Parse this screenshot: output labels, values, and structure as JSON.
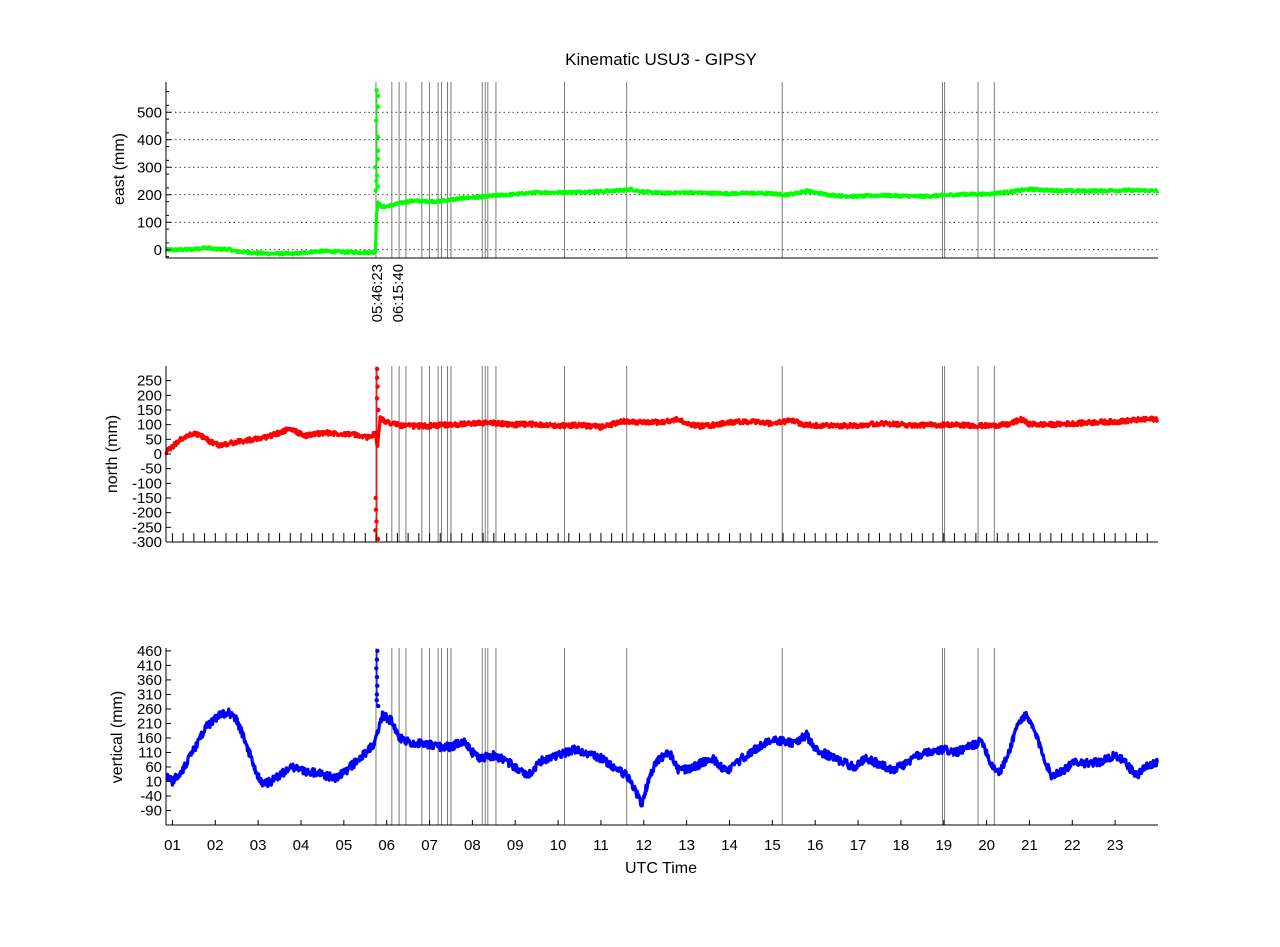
{
  "chart_data": {
    "type": "line",
    "title": "Kinematic USU3 - GIPSY",
    "xlabel": "UTC Time",
    "x_unit": "hour of day (UTC)",
    "xlim": [
      0.85,
      24.0
    ],
    "x_ticks": [
      {
        "v": 1,
        "label": "01"
      },
      {
        "v": 2,
        "label": "02"
      },
      {
        "v": 3,
        "label": "03"
      },
      {
        "v": 4,
        "label": "04"
      },
      {
        "v": 5,
        "label": "05"
      },
      {
        "v": 6,
        "label": "06"
      },
      {
        "v": 7,
        "label": "07"
      },
      {
        "v": 8,
        "label": "08"
      },
      {
        "v": 9,
        "label": "09"
      },
      {
        "v": 10,
        "label": "10"
      },
      {
        "v": 11,
        "label": "11"
      },
      {
        "v": 12,
        "label": "12"
      },
      {
        "v": 13,
        "label": "13"
      },
      {
        "v": 14,
        "label": "14"
      },
      {
        "v": 15,
        "label": "15"
      },
      {
        "v": 16,
        "label": "16"
      },
      {
        "v": 17,
        "label": "17"
      },
      {
        "v": 18,
        "label": "18"
      },
      {
        "v": 19,
        "label": "19"
      },
      {
        "v": 20,
        "label": "20"
      },
      {
        "v": 21,
        "label": "21"
      },
      {
        "v": 22,
        "label": "22"
      },
      {
        "v": 23,
        "label": "23"
      }
    ],
    "event_lines_hours": [
      5.75,
      6.12,
      6.29,
      6.45,
      6.82,
      7.0,
      7.2,
      7.28,
      7.42,
      7.5,
      8.23,
      8.3,
      8.36,
      8.55,
      10.15,
      11.6,
      15.23,
      18.97,
      19.02,
      19.8,
      20.18
    ],
    "event_labels": [
      {
        "hour": 5.773,
        "label": "05:46:23"
      },
      {
        "hour": 6.261,
        "label": "06:15:40"
      }
    ],
    "panels": [
      {
        "name": "east",
        "ylabel": "east (mm)",
        "color": "#00ff00",
        "ylim": [
          -30,
          610
        ],
        "yticks": [
          0,
          100,
          200,
          300,
          400,
          500
        ],
        "grid": "horizontal-dotted",
        "noise_amplitude_mm": 5,
        "trace": [
          [
            0.85,
            0
          ],
          [
            1.2,
            0
          ],
          [
            1.5,
            2
          ],
          [
            1.8,
            8
          ],
          [
            2.0,
            2
          ],
          [
            2.3,
            2
          ],
          [
            2.5,
            -6
          ],
          [
            2.8,
            -10
          ],
          [
            3.2,
            -14
          ],
          [
            3.6,
            -14
          ],
          [
            3.9,
            -14
          ],
          [
            4.2,
            -8
          ],
          [
            4.5,
            -5
          ],
          [
            5.0,
            -8
          ],
          [
            5.5,
            -10
          ],
          [
            5.74,
            -8
          ],
          [
            5.76,
            130
          ],
          [
            5.8,
            170
          ],
          [
            5.9,
            155
          ],
          [
            6.05,
            160
          ],
          [
            6.2,
            165
          ],
          [
            6.4,
            172
          ],
          [
            6.6,
            178
          ],
          [
            6.9,
            176
          ],
          [
            7.2,
            176
          ],
          [
            7.5,
            182
          ],
          [
            7.8,
            188
          ],
          [
            8.2,
            192
          ],
          [
            8.6,
            198
          ],
          [
            9.0,
            202
          ],
          [
            9.5,
            208
          ],
          [
            10.0,
            208
          ],
          [
            10.5,
            210
          ],
          [
            11.0,
            212
          ],
          [
            11.5,
            216
          ],
          [
            11.7,
            220
          ],
          [
            12.0,
            210
          ],
          [
            12.5,
            206
          ],
          [
            13.0,
            208
          ],
          [
            13.5,
            206
          ],
          [
            14.0,
            204
          ],
          [
            14.5,
            206
          ],
          [
            15.0,
            204
          ],
          [
            15.3,
            200
          ],
          [
            15.5,
            204
          ],
          [
            15.8,
            214
          ],
          [
            16.0,
            208
          ],
          [
            16.3,
            200
          ],
          [
            16.6,
            196
          ],
          [
            17.0,
            194
          ],
          [
            17.5,
            198
          ],
          [
            18.0,
            196
          ],
          [
            18.5,
            194
          ],
          [
            19.0,
            198
          ],
          [
            19.5,
            202
          ],
          [
            20.0,
            202
          ],
          [
            20.5,
            210
          ],
          [
            21.0,
            220
          ],
          [
            21.5,
            216
          ],
          [
            22.0,
            214
          ],
          [
            22.5,
            214
          ],
          [
            23.0,
            216
          ],
          [
            23.5,
            216
          ],
          [
            24.0,
            214
          ]
        ],
        "spike": {
          "hour": 5.77,
          "values": [
            580,
            560,
            520,
            470,
            410,
            360,
            330,
            300,
            270,
            250,
            230,
            215
          ]
        }
      },
      {
        "name": "north",
        "ylabel": "north (mm)",
        "color": "#ff0000",
        "ylim": [
          -300,
          300
        ],
        "yticks": [
          -300,
          -250,
          -200,
          -150,
          -100,
          -50,
          0,
          50,
          100,
          150,
          200,
          250
        ],
        "grid": "none",
        "minor_x_ticks_per_hour": 4,
        "noise_amplitude_mm": 8,
        "trace": [
          [
            0.85,
            5
          ],
          [
            1.0,
            25
          ],
          [
            1.2,
            50
          ],
          [
            1.5,
            70
          ],
          [
            1.7,
            60
          ],
          [
            1.9,
            40
          ],
          [
            2.1,
            30
          ],
          [
            2.4,
            38
          ],
          [
            2.8,
            48
          ],
          [
            3.2,
            58
          ],
          [
            3.5,
            72
          ],
          [
            3.7,
            85
          ],
          [
            3.9,
            75
          ],
          [
            4.1,
            62
          ],
          [
            4.3,
            68
          ],
          [
            4.6,
            72
          ],
          [
            4.9,
            70
          ],
          [
            5.2,
            68
          ],
          [
            5.5,
            56
          ],
          [
            5.74,
            68
          ],
          [
            5.78,
            20
          ],
          [
            5.85,
            120
          ],
          [
            6.0,
            110
          ],
          [
            6.3,
            98
          ],
          [
            6.6,
            95
          ],
          [
            7.0,
            96
          ],
          [
            7.5,
            100
          ],
          [
            8.0,
            104
          ],
          [
            8.5,
            106
          ],
          [
            9.0,
            100
          ],
          [
            9.5,
            102
          ],
          [
            10.0,
            96
          ],
          [
            10.5,
            98
          ],
          [
            11.0,
            92
          ],
          [
            11.5,
            110
          ],
          [
            11.7,
            112
          ],
          [
            12.0,
            106
          ],
          [
            12.5,
            110
          ],
          [
            12.8,
            118
          ],
          [
            13.0,
            104
          ],
          [
            13.3,
            95
          ],
          [
            13.6,
            98
          ],
          [
            14.0,
            108
          ],
          [
            14.5,
            110
          ],
          [
            15.0,
            104
          ],
          [
            15.5,
            115
          ],
          [
            15.7,
            100
          ],
          [
            16.0,
            98
          ],
          [
            16.5,
            96
          ],
          [
            17.0,
            98
          ],
          [
            17.5,
            104
          ],
          [
            18.0,
            100
          ],
          [
            18.5,
            98
          ],
          [
            19.0,
            100
          ],
          [
            19.5,
            98
          ],
          [
            20.0,
            96
          ],
          [
            20.5,
            100
          ],
          [
            20.8,
            118
          ],
          [
            21.0,
            102
          ],
          [
            21.5,
            100
          ],
          [
            22.0,
            104
          ],
          [
            22.5,
            108
          ],
          [
            23.0,
            110
          ],
          [
            23.5,
            116
          ],
          [
            24.0,
            120
          ]
        ],
        "spike": {
          "hour": 5.77,
          "values": [
            290,
            260,
            230,
            190,
            150,
            -150,
            -190,
            -230,
            -260,
            -290
          ]
        }
      },
      {
        "name": "vertical",
        "ylabel": "vertical (mm)",
        "color": "#0000ff",
        "ylim": [
          -140,
          470
        ],
        "yticks": [
          -90,
          -40,
          10,
          60,
          110,
          160,
          210,
          260,
          310,
          360,
          410,
          460
        ],
        "grid": "none",
        "noise_amplitude_mm": 14,
        "trace": [
          [
            0.85,
            30
          ],
          [
            1.0,
            10
          ],
          [
            1.2,
            40
          ],
          [
            1.5,
            120
          ],
          [
            1.8,
            200
          ],
          [
            2.1,
            240
          ],
          [
            2.3,
            250
          ],
          [
            2.5,
            220
          ],
          [
            2.7,
            150
          ],
          [
            2.9,
            60
          ],
          [
            3.1,
            0
          ],
          [
            3.3,
            10
          ],
          [
            3.5,
            30
          ],
          [
            3.6,
            40
          ],
          [
            3.8,
            60
          ],
          [
            4.0,
            50
          ],
          [
            4.2,
            40
          ],
          [
            4.4,
            40
          ],
          [
            4.6,
            30
          ],
          [
            4.8,
            20
          ],
          [
            5.0,
            40
          ],
          [
            5.3,
            80
          ],
          [
            5.6,
            120
          ],
          [
            5.74,
            150
          ],
          [
            5.9,
            240
          ],
          [
            6.1,
            220
          ],
          [
            6.3,
            160
          ],
          [
            6.6,
            140
          ],
          [
            6.9,
            140
          ],
          [
            7.2,
            130
          ],
          [
            7.5,
            130
          ],
          [
            7.8,
            150
          ],
          [
            8.0,
            110
          ],
          [
            8.2,
            90
          ],
          [
            8.5,
            100
          ],
          [
            8.8,
            80
          ],
          [
            9.0,
            60
          ],
          [
            9.3,
            30
          ],
          [
            9.6,
            80
          ],
          [
            10.0,
            100
          ],
          [
            10.4,
            120
          ],
          [
            10.8,
            100
          ],
          [
            11.0,
            90
          ],
          [
            11.3,
            60
          ],
          [
            11.6,
            30
          ],
          [
            11.8,
            -20
          ],
          [
            11.95,
            -70
          ],
          [
            12.1,
            10
          ],
          [
            12.3,
            80
          ],
          [
            12.6,
            110
          ],
          [
            12.8,
            50
          ],
          [
            13.0,
            50
          ],
          [
            13.3,
            70
          ],
          [
            13.6,
            90
          ],
          [
            13.8,
            60
          ],
          [
            14.0,
            50
          ],
          [
            14.3,
            90
          ],
          [
            14.6,
            120
          ],
          [
            14.9,
            150
          ],
          [
            15.2,
            150
          ],
          [
            15.5,
            140
          ],
          [
            15.8,
            170
          ],
          [
            16.0,
            120
          ],
          [
            16.3,
            100
          ],
          [
            16.6,
            80
          ],
          [
            16.9,
            60
          ],
          [
            17.2,
            90
          ],
          [
            17.5,
            70
          ],
          [
            17.8,
            50
          ],
          [
            18.1,
            70
          ],
          [
            18.4,
            100
          ],
          [
            18.7,
            110
          ],
          [
            19.0,
            120
          ],
          [
            19.3,
            110
          ],
          [
            19.6,
            130
          ],
          [
            19.9,
            150
          ],
          [
            20.1,
            70
          ],
          [
            20.3,
            40
          ],
          [
            20.5,
            100
          ],
          [
            20.7,
            200
          ],
          [
            20.9,
            240
          ],
          [
            21.1,
            190
          ],
          [
            21.3,
            110
          ],
          [
            21.5,
            30
          ],
          [
            21.8,
            50
          ],
          [
            22.1,
            80
          ],
          [
            22.4,
            70
          ],
          [
            22.7,
            80
          ],
          [
            23.0,
            100
          ],
          [
            23.2,
            80
          ],
          [
            23.5,
            30
          ],
          [
            23.7,
            60
          ],
          [
            24.0,
            80
          ]
        ],
        "spike": {
          "hour": 5.77,
          "values": [
            460,
            430,
            400,
            370,
            340,
            310,
            290,
            270
          ]
        }
      }
    ]
  }
}
